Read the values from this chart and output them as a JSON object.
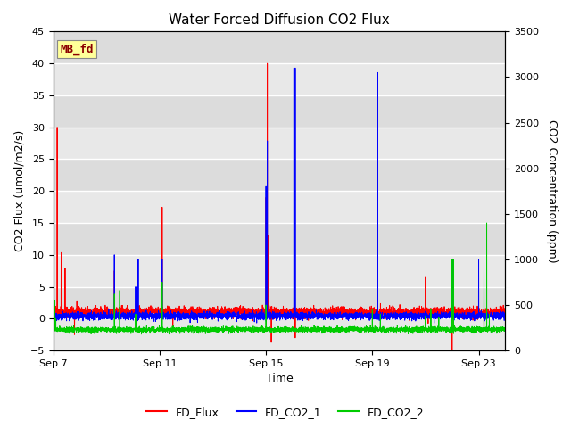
{
  "title": "Water Forced Diffusion CO2 Flux",
  "xlabel": "Time",
  "ylabel_left": "CO2 Flux (umol/m2/s)",
  "ylabel_right": "CO2 Concentration (ppm)",
  "ylim_left": [
    -5,
    45
  ],
  "ylim_right": [
    0,
    3500
  ],
  "yticks_left": [
    -5,
    0,
    5,
    10,
    15,
    20,
    25,
    30,
    35,
    40,
    45
  ],
  "yticks_right": [
    0,
    500,
    1000,
    1500,
    2000,
    2500,
    3000,
    3500
  ],
  "xtick_labels": [
    "Sep 7",
    "Sep 11",
    "Sep 15",
    "Sep 19",
    "Sep 23"
  ],
  "xtick_positions": [
    0,
    4,
    8,
    12,
    16
  ],
  "xlim": [
    0,
    17
  ],
  "annotation_text": "MB_fd",
  "annotation_color": "#8B0000",
  "annotation_bg": "#FFFF99",
  "bg_color": "#DCDCDC",
  "grid_color": "#FFFFFF",
  "series": {
    "FD_Flux": {
      "color": "#FF0000",
      "lw": 0.7
    },
    "FD_CO2_1": {
      "color": "#0000FF",
      "lw": 0.7
    },
    "FD_CO2_2": {
      "color": "#00CC00",
      "lw": 0.7
    }
  },
  "legend_entries": [
    {
      "label": "FD_Flux",
      "color": "#FF0000"
    },
    {
      "label": "FD_CO2_1",
      "color": "#0000FF"
    },
    {
      "label": "FD_CO2_2",
      "color": "#00CC00"
    }
  ],
  "figsize": [
    6.4,
    4.8
  ],
  "dpi": 100
}
